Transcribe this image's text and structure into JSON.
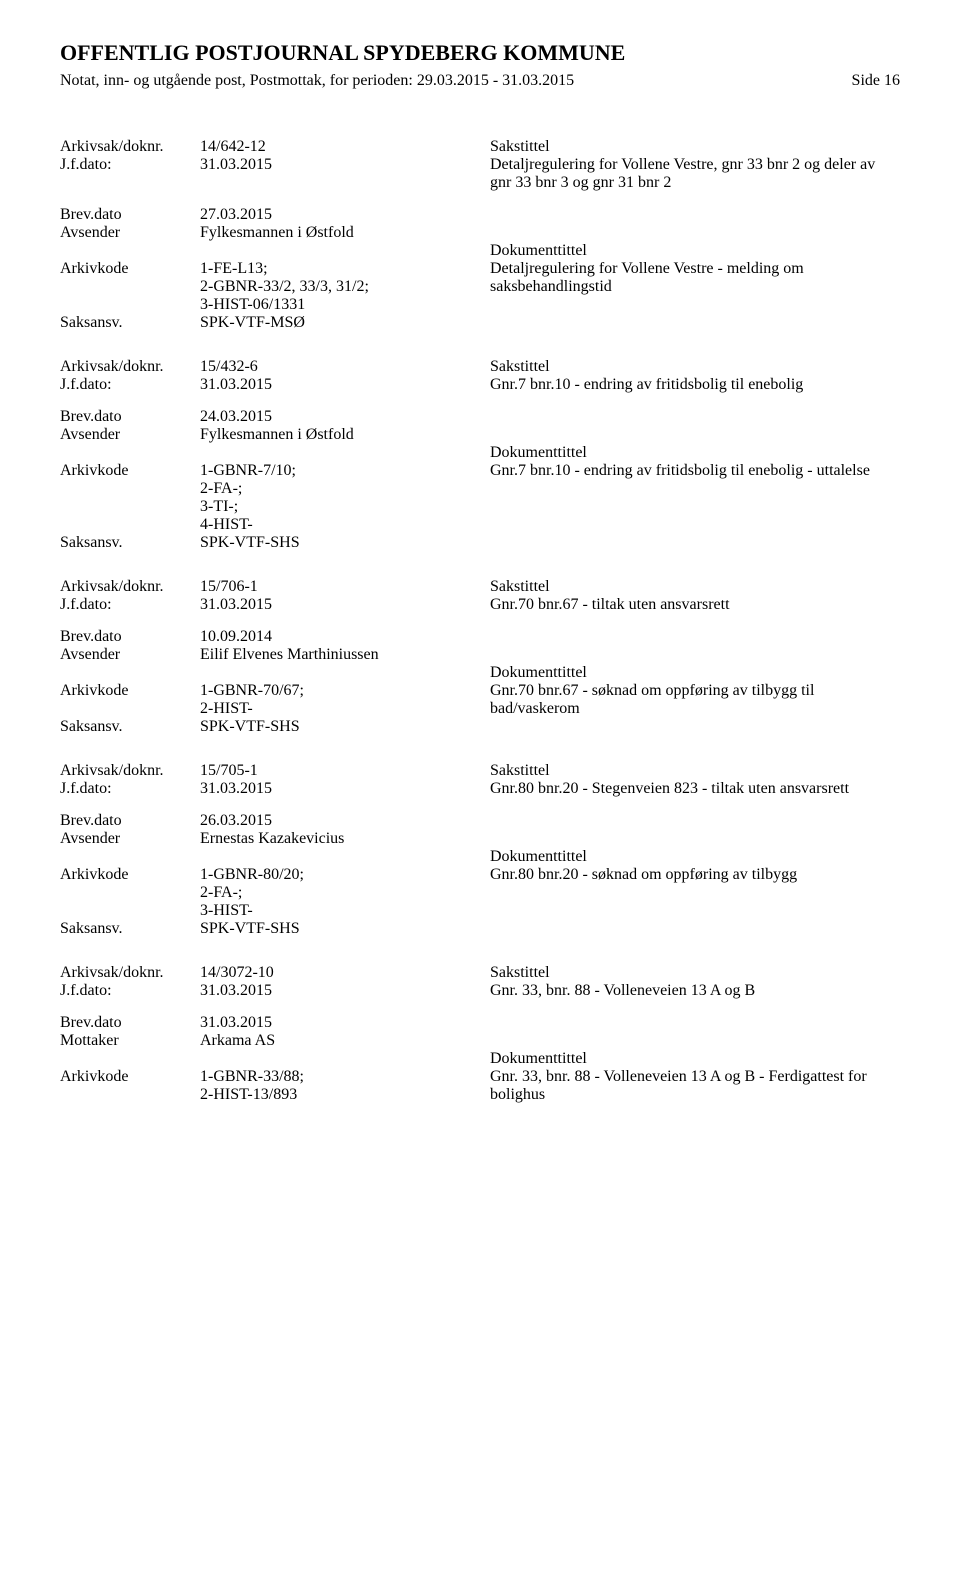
{
  "header": {
    "title": "OFFENTLIG POSTJOURNAL SPYDEBERG KOMMUNE",
    "subtitle": "Notat, inn- og utgående post, Postmottak, for perioden: 29.03.2015 - 31.03.2015",
    "page": "Side 16"
  },
  "labels": {
    "arkivsak": "Arkivsak/doknr.",
    "jfdato": "J.f.dato:",
    "brevdato": "Brev.dato",
    "avsender": "Avsender",
    "mottaker": "Mottaker",
    "arkivkode": "Arkivkode",
    "saksansv": "Saksansv.",
    "sakstittel": "Sakstittel",
    "dokumenttittel": "Dokumenttittel"
  },
  "entries": [
    {
      "doknr": "14/642-12",
      "jfdato": "31.03.2015",
      "sakstittel": "Detaljregulering for Vollene Vestre, gnr 33 bnr 2 og deler av gnr 33 bnr 3 og gnr 31 bnr 2",
      "brevdato": "27.03.2015",
      "partyLabel": "Avsender",
      "party": "Fylkesmannen i Østfold",
      "arkivkode": "1-FE-L13;\n2-GBNR-33/2, 33/3, 31/2;\n3-HIST-06/1331",
      "dokumenttittel": "Detaljregulering for Vollene Vestre - melding om saksbehandlingstid",
      "saksansv": "SPK-VTF-MSØ"
    },
    {
      "doknr": "15/432-6",
      "jfdato": "31.03.2015",
      "sakstittel": "Gnr.7 bnr.10 - endring av fritidsbolig til enebolig",
      "brevdato": "24.03.2015",
      "partyLabel": "Avsender",
      "party": "Fylkesmannen i Østfold",
      "arkivkode": "1-GBNR-7/10;\n2-FA-;\n3-TI-;\n4-HIST-",
      "dokumenttittel": "Gnr.7 bnr.10 - endring av fritidsbolig til enebolig - uttalelse",
      "saksansv": "SPK-VTF-SHS"
    },
    {
      "doknr": "15/706-1",
      "jfdato": "31.03.2015",
      "sakstittel": "Gnr.70 bnr.67 - tiltak uten ansvarsrett",
      "brevdato": "10.09.2014",
      "partyLabel": "Avsender",
      "party": "Eilif Elvenes Marthiniussen",
      "arkivkode": "1-GBNR-70/67;\n2-HIST-",
      "dokumenttittel": "Gnr.70 bnr.67 - søknad om oppføring av tilbygg til bad/vaskerom",
      "saksansv": "SPK-VTF-SHS"
    },
    {
      "doknr": "15/705-1",
      "jfdato": "31.03.2015",
      "sakstittel": "Gnr.80 bnr.20 - Stegenveien 823 - tiltak uten ansvarsrett",
      "brevdato": "26.03.2015",
      "partyLabel": "Avsender",
      "party": "Ernestas Kazakevicius",
      "arkivkode": "1-GBNR-80/20;\n2-FA-;\n3-HIST-",
      "dokumenttittel": "Gnr.80 bnr.20 -  søknad om oppføring av tilbygg",
      "saksansv": "SPK-VTF-SHS"
    },
    {
      "doknr": "14/3072-10",
      "jfdato": "31.03.2015",
      "sakstittel": "Gnr. 33, bnr. 88 - Volleneveien 13 A og B",
      "brevdato": "31.03.2015",
      "partyLabel": "Mottaker",
      "party": "Arkama AS",
      "arkivkode": "1-GBNR-33/88;\n2-HIST-13/893",
      "dokumenttittel": "Gnr. 33, bnr. 88 - Volleneveien 13 A og B - Ferdigattest for bolighus",
      "saksansv": ""
    }
  ]
}
